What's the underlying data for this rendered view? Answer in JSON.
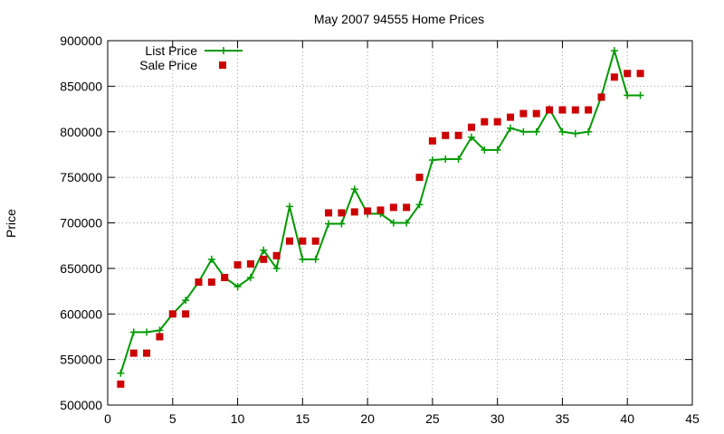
{
  "chart_data": {
    "type": "line",
    "title": "May 2007 94555 Home Prices",
    "xlabel": "",
    "ylabel": "Price",
    "xlim": [
      0,
      45
    ],
    "ylim": [
      500000,
      900000
    ],
    "x_ticks": [
      "0",
      "5",
      "10",
      "15",
      "20",
      "25",
      "30",
      "35",
      "40",
      "45"
    ],
    "y_ticks": [
      "500000",
      "550000",
      "600000",
      "650000",
      "700000",
      "750000",
      "800000",
      "850000",
      "900000"
    ],
    "grid": true,
    "legend_position": "top-left",
    "series": [
      {
        "name": "List Price",
        "style": "line-plus",
        "color": "#009900",
        "x": [
          1,
          2,
          3,
          4,
          5,
          6,
          7,
          8,
          9,
          10,
          11,
          12,
          13,
          14,
          15,
          16,
          17,
          18,
          19,
          20,
          21,
          22,
          23,
          24,
          25,
          26,
          27,
          28,
          29,
          30,
          31,
          32,
          33,
          34,
          35,
          36,
          37,
          38,
          39,
          40,
          41
        ],
        "y": [
          535000,
          580000,
          580000,
          582000,
          600000,
          615000,
          635000,
          660000,
          640000,
          630000,
          640000,
          670000,
          650000,
          718000,
          660000,
          660000,
          699000,
          699000,
          737000,
          710000,
          710000,
          700000,
          700000,
          720000,
          769000,
          770000,
          770000,
          794000,
          780000,
          780000,
          804000,
          800000,
          800000,
          825000,
          800000,
          798000,
          800000,
          839000,
          889000,
          840000,
          840000
        ]
      },
      {
        "name": "Sale Price",
        "style": "points-square",
        "color": "#cc0000",
        "x": [
          1,
          2,
          3,
          4,
          5,
          6,
          7,
          8,
          9,
          10,
          11,
          12,
          13,
          14,
          15,
          16,
          17,
          18,
          19,
          20,
          21,
          22,
          23,
          24,
          25,
          26,
          27,
          28,
          29,
          30,
          31,
          32,
          33,
          34,
          35,
          36,
          37,
          38,
          39,
          40,
          41
        ],
        "y": [
          523000,
          557000,
          557000,
          575000,
          600000,
          600000,
          635000,
          635000,
          640000,
          654000,
          655000,
          660000,
          664000,
          680000,
          680000,
          680000,
          711000,
          711000,
          712000,
          713000,
          714000,
          717000,
          717000,
          750000,
          790000,
          796000,
          796000,
          805000,
          811000,
          811000,
          816000,
          820000,
          820000,
          824000,
          824000,
          824000,
          824000,
          838000,
          860000,
          864000,
          864000
        ]
      }
    ]
  }
}
